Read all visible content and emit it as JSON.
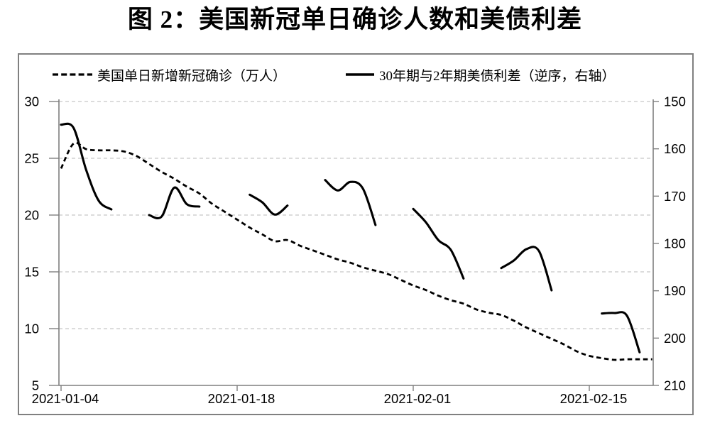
{
  "title": "图 2：美国新冠单日确诊人数和美债利差",
  "legend": {
    "cases_label": "美国单日新增新冠确诊（万人）",
    "spread_label": "30年期与2年期美债利差（逆序，右轴）"
  },
  "colors": {
    "series": "#000000",
    "grid": "#c7c7c7",
    "axis": "#7f7f7f",
    "text": "#000000",
    "border": "#808080"
  },
  "chart_data": {
    "type": "line",
    "title": "图 2：美国新冠单日确诊人数和美债利差",
    "grid": "horizontal-dashed",
    "legend_position": "top",
    "x_axis": {
      "start_date": "2021-01-04",
      "tick_labels": [
        "2021-01-04",
        "2021-01-18",
        "2021-02-01",
        "2021-02-15"
      ],
      "tick_days": [
        0,
        14,
        28,
        42
      ],
      "domain_days": [
        0,
        47.2
      ]
    },
    "left_axis": {
      "ticks": [
        30,
        25,
        20,
        15,
        10,
        5
      ],
      "range": [
        5,
        30
      ],
      "inverted": false
    },
    "right_axis": {
      "ticks": [
        150,
        160,
        170,
        180,
        190,
        200,
        210
      ],
      "range": [
        150,
        210
      ],
      "inverted": true,
      "note": "逆序"
    },
    "series": [
      {
        "name": "美国单日新增新冠确诊（万人）",
        "axis": "left",
        "style": "dashed",
        "points": [
          [
            "2021-01-04",
            24.1
          ],
          [
            "2021-01-05",
            26.3
          ],
          [
            "2021-01-06",
            25.8
          ],
          [
            "2021-01-07",
            25.7
          ],
          [
            "2021-01-08",
            25.7
          ],
          [
            "2021-01-09",
            25.6
          ],
          [
            "2021-01-10",
            25.2
          ],
          [
            "2021-01-11",
            24.5
          ],
          [
            "2021-01-12",
            23.8
          ],
          [
            "2021-01-13",
            23.2
          ],
          [
            "2021-01-14",
            22.5
          ],
          [
            "2021-01-15",
            21.9
          ],
          [
            "2021-01-16",
            21.0
          ],
          [
            "2021-01-17",
            20.3
          ],
          [
            "2021-01-18",
            19.6
          ],
          [
            "2021-01-19",
            18.9
          ],
          [
            "2021-01-20",
            18.3
          ],
          [
            "2021-01-21",
            17.7
          ],
          [
            "2021-01-22",
            17.8
          ],
          [
            "2021-01-23",
            17.3
          ],
          [
            "2021-01-24",
            16.9
          ],
          [
            "2021-01-25",
            16.5
          ],
          [
            "2021-01-26",
            16.1
          ],
          [
            "2021-01-27",
            15.8
          ],
          [
            "2021-01-28",
            15.4
          ],
          [
            "2021-01-29",
            15.1
          ],
          [
            "2021-01-30",
            14.8
          ],
          [
            "2021-01-31",
            14.3
          ],
          [
            "2021-02-01",
            13.8
          ],
          [
            "2021-02-02",
            13.4
          ],
          [
            "2021-02-03",
            12.9
          ],
          [
            "2021-02-04",
            12.5
          ],
          [
            "2021-02-05",
            12.2
          ],
          [
            "2021-02-06",
            11.7
          ],
          [
            "2021-02-07",
            11.4
          ],
          [
            "2021-02-08",
            11.2
          ],
          [
            "2021-02-09",
            10.7
          ],
          [
            "2021-02-10",
            10.1
          ],
          [
            "2021-02-11",
            9.6
          ],
          [
            "2021-02-12",
            9.1
          ],
          [
            "2021-02-13",
            8.6
          ],
          [
            "2021-02-14",
            8.0
          ],
          [
            "2021-02-15",
            7.6
          ],
          [
            "2021-02-16",
            7.4
          ],
          [
            "2021-02-17",
            7.25
          ],
          [
            "2021-02-18",
            7.3
          ],
          [
            "2021-02-19",
            7.3
          ],
          [
            "2021-02-20",
            7.3
          ]
        ]
      },
      {
        "name": "30年期与2年期美债利差（逆序，右轴）",
        "axis": "right",
        "style": "solid",
        "segments": [
          [
            [
              "2021-01-04",
              154.9
            ],
            [
              "2021-01-05",
              155.6
            ],
            [
              "2021-01-06",
              164.5
            ],
            [
              "2021-01-07",
              171.0
            ],
            [
              "2021-01-08",
              172.8
            ]
          ],
          [
            [
              "2021-01-11",
              174.0
            ],
            [
              "2021-01-12",
              174.3
            ],
            [
              "2021-01-13",
              168.2
            ],
            [
              "2021-01-14",
              171.7
            ],
            [
              "2021-01-15",
              172.2
            ]
          ],
          [
            [
              "2021-01-19",
              169.7
            ],
            [
              "2021-01-20",
              171.3
            ],
            [
              "2021-01-21",
              173.9
            ],
            [
              "2021-01-22",
              172.0
            ]
          ],
          [
            [
              "2021-01-25",
              166.6
            ],
            [
              "2021-01-26",
              168.8
            ],
            [
              "2021-01-27",
              167.0
            ],
            [
              "2021-01-28",
              168.4
            ],
            [
              "2021-01-29",
              176.1
            ]
          ],
          [
            [
              "2021-02-01",
              172.7
            ],
            [
              "2021-02-02",
              175.5
            ],
            [
              "2021-02-03",
              179.3
            ],
            [
              "2021-02-04",
              181.4
            ],
            [
              "2021-02-05",
              187.4
            ]
          ],
          [
            [
              "2021-02-08",
              185.2
            ],
            [
              "2021-02-09",
              183.6
            ],
            [
              "2021-02-10",
              181.2
            ],
            [
              "2021-02-11",
              181.6
            ],
            [
              "2021-02-12",
              189.9
            ]
          ],
          [
            [
              "2021-02-16",
              194.8
            ],
            [
              "2021-02-17",
              194.7
            ],
            [
              "2021-02-18",
              195.3
            ],
            [
              "2021-02-19",
              203.0
            ]
          ]
        ]
      }
    ]
  }
}
